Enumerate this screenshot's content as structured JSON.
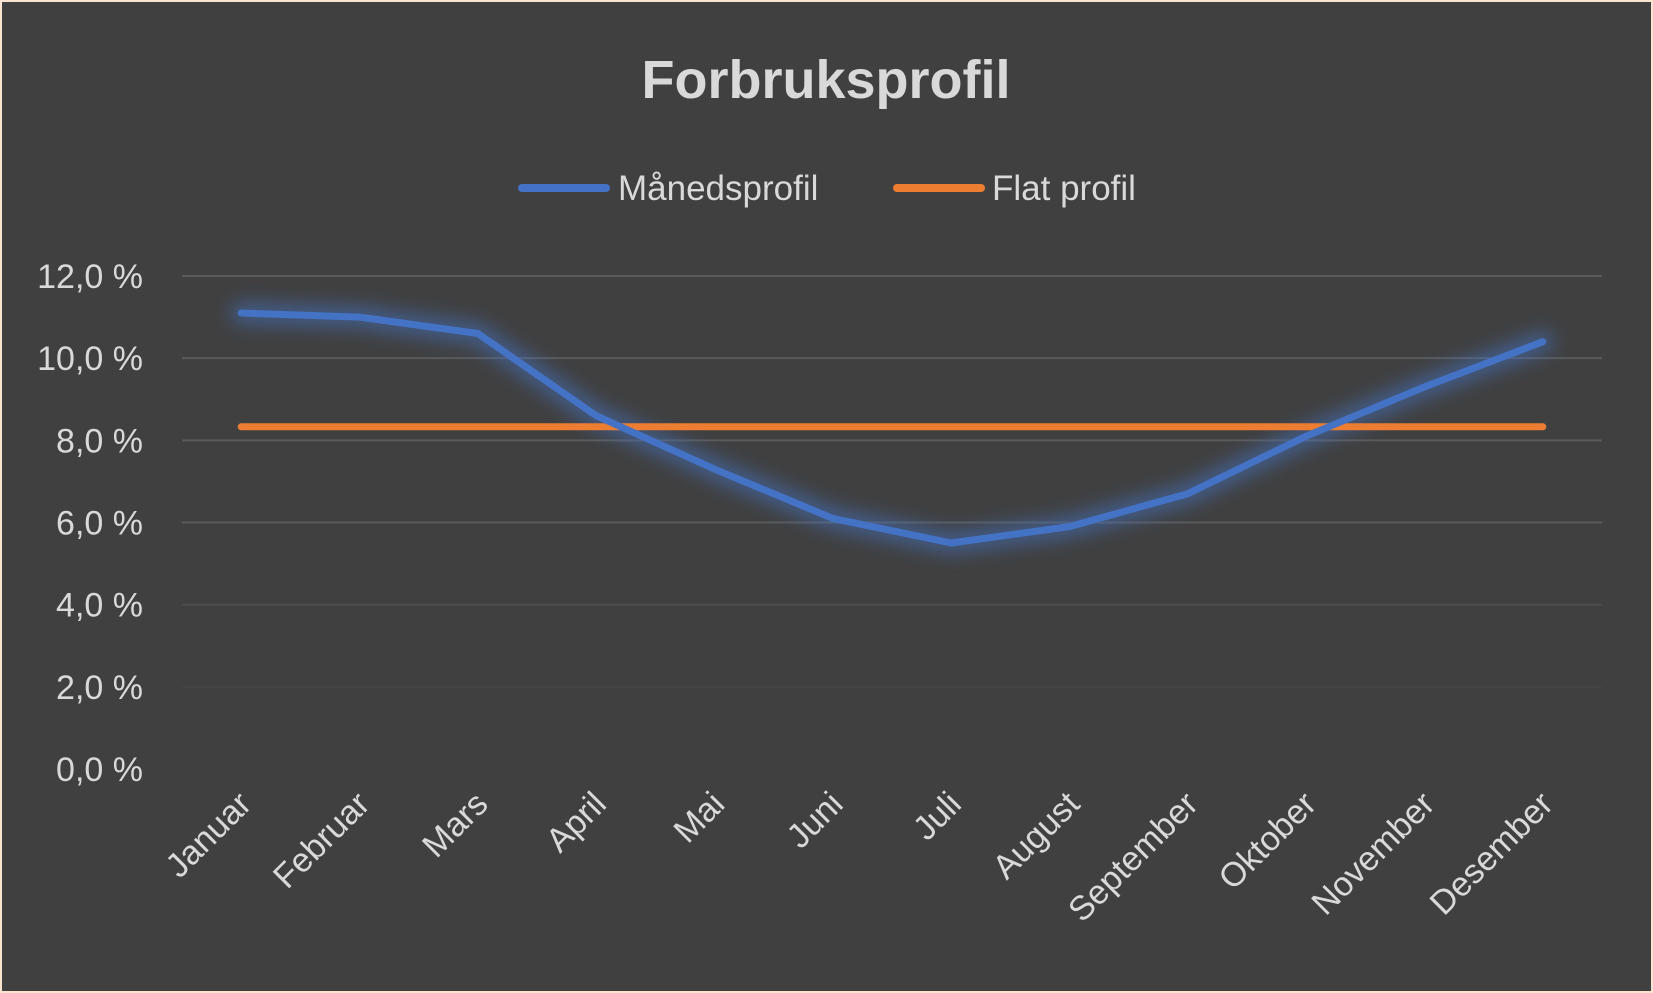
{
  "chart_data": {
    "type": "line",
    "title": "Forbruksprofil",
    "xlabel": "",
    "ylabel": "",
    "categories": [
      "Januar",
      "Februar",
      "Mars",
      "April",
      "Mai",
      "Juni",
      "Juli",
      "August",
      "September",
      "Oktober",
      "November",
      "Desember"
    ],
    "series": [
      {
        "name": "Månedsprofil",
        "color": "#4472c4",
        "values": [
          11.1,
          11.0,
          10.6,
          8.6,
          7.3,
          6.1,
          5.5,
          5.9,
          6.7,
          8.1,
          9.3,
          10.4
        ]
      },
      {
        "name": "Flat profil",
        "color": "#ed7d31",
        "values": [
          8.33,
          8.33,
          8.33,
          8.33,
          8.33,
          8.33,
          8.33,
          8.33,
          8.33,
          8.33,
          8.33,
          8.33
        ]
      }
    ],
    "ylim": [
      0,
      12
    ],
    "yticks": [
      0,
      2,
      4,
      6,
      8,
      10,
      12
    ],
    "ytick_labels": [
      "0,0 %",
      "2,0 %",
      "4,0 %",
      "6,0 %",
      "8,0 %",
      "10,0 %",
      "12,0 %"
    ],
    "grid": true,
    "legend_position": "top"
  }
}
